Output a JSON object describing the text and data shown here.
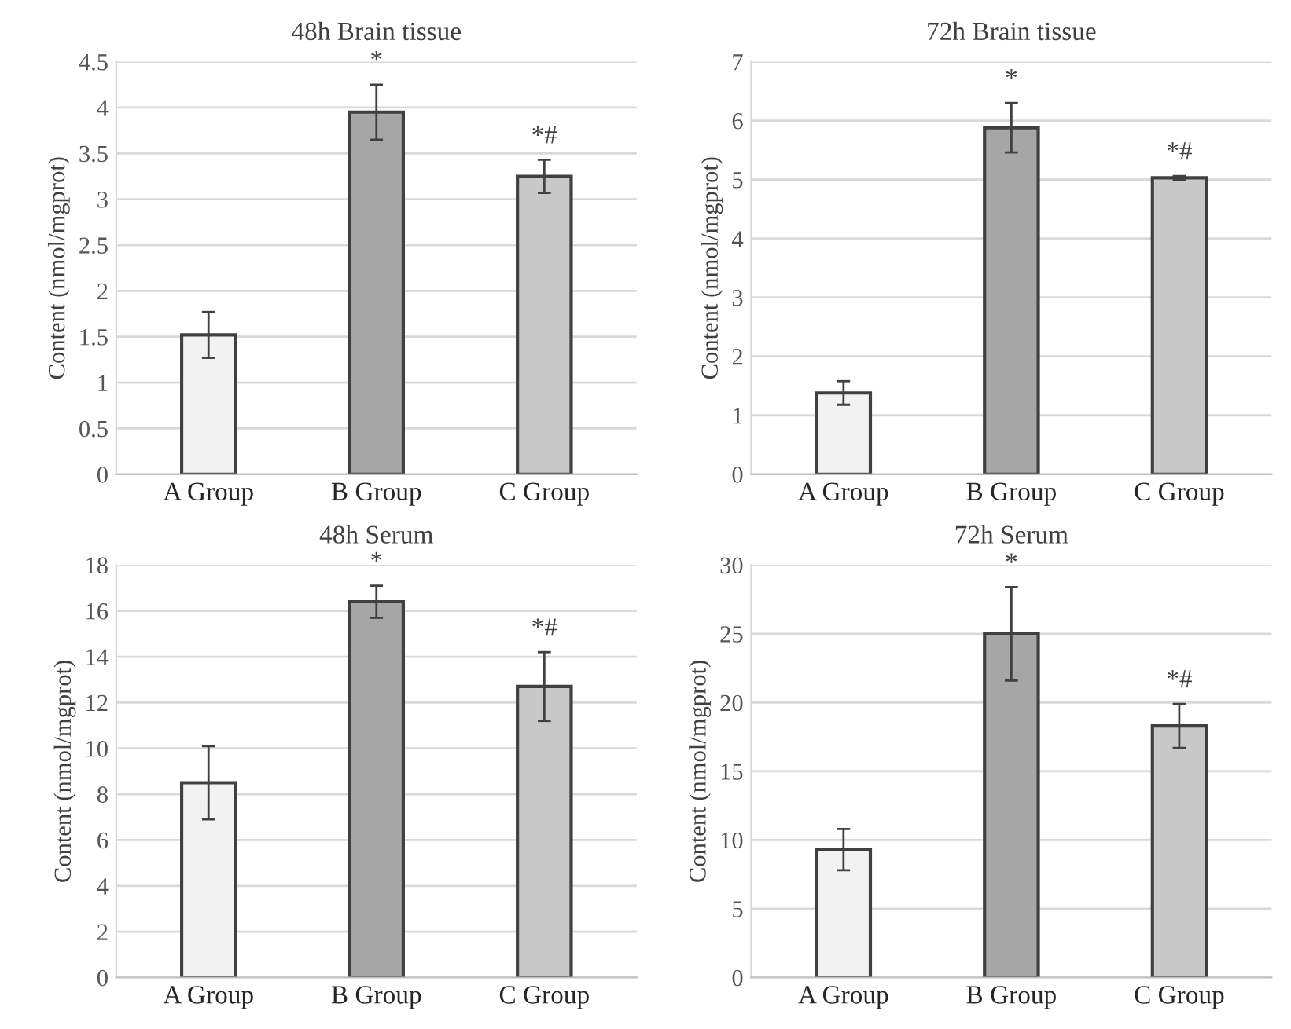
{
  "chart_data": [
    {
      "type": "bar",
      "title": "48h Brain tissue",
      "ylabel": "Content (nmol/mgprot)",
      "categories": [
        "A Group",
        "B Group",
        "C Group"
      ],
      "values": [
        1.52,
        3.95,
        3.25
      ],
      "errors": [
        0.25,
        0.3,
        0.18
      ],
      "colors": [
        "#f2f2f2",
        "#a6a6a6",
        "#c8c8c8"
      ],
      "ylim": [
        0,
        4.5
      ],
      "yticks": [
        0,
        0.5,
        1,
        1.5,
        2,
        2.5,
        3,
        3.5,
        4,
        4.5
      ],
      "grid": "y",
      "annotations": [
        "*",
        "*#"
      ]
    },
    {
      "type": "bar",
      "title": "72h Brain tissue",
      "ylabel": "Content (nmol/mgprot)",
      "categories": [
        "A Group",
        "B Group",
        "C Group"
      ],
      "values": [
        1.38,
        5.88,
        5.03
      ],
      "errors": [
        0.2,
        0.42,
        0.03
      ],
      "colors": [
        "#f2f2f2",
        "#a6a6a6",
        "#c8c8c8"
      ],
      "ylim": [
        0,
        7
      ],
      "yticks": [
        0,
        1,
        2,
        3,
        4,
        5,
        6,
        7
      ],
      "grid": "y",
      "annotations": [
        "*",
        "*#"
      ]
    },
    {
      "type": "bar",
      "title": "48h Serum",
      "ylabel": "Content (nmol/mgprot)",
      "categories": [
        "A Group",
        "B Group",
        "C Group"
      ],
      "values": [
        8.5,
        16.4,
        12.7
      ],
      "errors": [
        1.6,
        0.7,
        1.5
      ],
      "colors": [
        "#f2f2f2",
        "#a6a6a6",
        "#c8c8c8"
      ],
      "ylim": [
        0,
        18
      ],
      "yticks": [
        0,
        2,
        4,
        6,
        8,
        10,
        12,
        14,
        16,
        18
      ],
      "grid": "y",
      "annotations": [
        "*",
        "*#"
      ]
    },
    {
      "type": "bar",
      "title": "72h Serum",
      "ylabel": "Content (nmol/mgprot)",
      "categories": [
        "A Group",
        "B Group",
        "C Group"
      ],
      "values": [
        9.3,
        25.0,
        18.3
      ],
      "errors": [
        1.5,
        3.4,
        1.6
      ],
      "colors": [
        "#f2f2f2",
        "#a6a6a6",
        "#c8c8c8"
      ],
      "ylim": [
        0,
        30
      ],
      "yticks": [
        0,
        5,
        10,
        15,
        20,
        25,
        30
      ],
      "grid": "y",
      "annotations": [
        "*",
        "*#"
      ]
    }
  ]
}
